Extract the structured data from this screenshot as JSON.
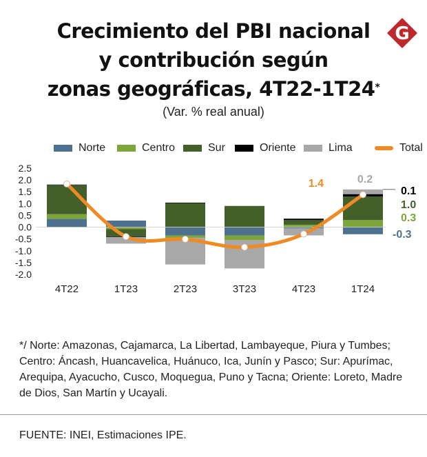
{
  "title_lines": [
    "Crecimiento del PBI nacional",
    "y contribución según",
    "zonas geográficas, 4T22-1T24"
  ],
  "title_mark": "*",
  "subtitle": "(Var. % real anual)",
  "logo_letter": "G",
  "logo_color": "#c0272d",
  "footnote": "*/ Norte: Amazonas, Cajamarca, La Libertad, Lambayeque, Piura y Tumbes; Centro: Áncash, Huancavelica, Huánuco, Ica, Junín y Pasco; Sur: Apurímac, Arequipa, Ayacucho, Cusco, Moquegua, Puno y Tacna; Oriente: Loreto, Madre de Dios, San Martín y Ucayali.",
  "source": "FUENTE: INEI, Estimaciones IPE.",
  "chart_data": {
    "type": "bar",
    "stacked": true,
    "categories": [
      "4T22",
      "1T23",
      "2T23",
      "3T23",
      "4T23",
      "1T24"
    ],
    "ylim": [
      -2.0,
      2.5
    ],
    "yticks": [
      "2.5",
      "2.0",
      "1.5",
      "1.0",
      "0.5",
      "0.0",
      "-0.5",
      "-1.0",
      "-1.5",
      "-2.0"
    ],
    "grid": false,
    "legend_position": "top",
    "series": [
      {
        "name": "Norte",
        "color": "#4f7190",
        "values": [
          0.35,
          0.28,
          -0.35,
          -0.35,
          -0.05,
          -0.3
        ]
      },
      {
        "name": "Centro",
        "color": "#7ea53a",
        "values": [
          0.2,
          -0.08,
          -0.1,
          -0.2,
          0.1,
          0.3
        ]
      },
      {
        "name": "Sur",
        "color": "#43602a",
        "values": [
          1.22,
          -0.32,
          1.02,
          0.9,
          0.2,
          1.0
        ]
      },
      {
        "name": "Oriente",
        "color": "#000000",
        "values": [
          0.02,
          -0.02,
          0.02,
          0.0,
          0.06,
          0.1
        ]
      },
      {
        "name": "Lima",
        "color": "#a8a8a8",
        "values": [
          0.03,
          -0.28,
          -1.13,
          -1.2,
          -0.3,
          0.2
        ]
      }
    ],
    "total": {
      "name": "Total",
      "color": "#f08a24",
      "values": [
        1.83,
        -0.4,
        -0.51,
        -0.85,
        -0.29,
        1.38
      ]
    },
    "annotations": [
      {
        "text": "1.4",
        "color": "#f08a24"
      },
      {
        "text": "0.2",
        "color": "#a8a8a8"
      },
      {
        "text": "0.1",
        "color": "#000000"
      },
      {
        "text": "1.0",
        "color": "#43602a"
      },
      {
        "text": "0.3",
        "color": "#7ea53a"
      },
      {
        "text": "-0.3",
        "color": "#4f7190"
      }
    ]
  }
}
